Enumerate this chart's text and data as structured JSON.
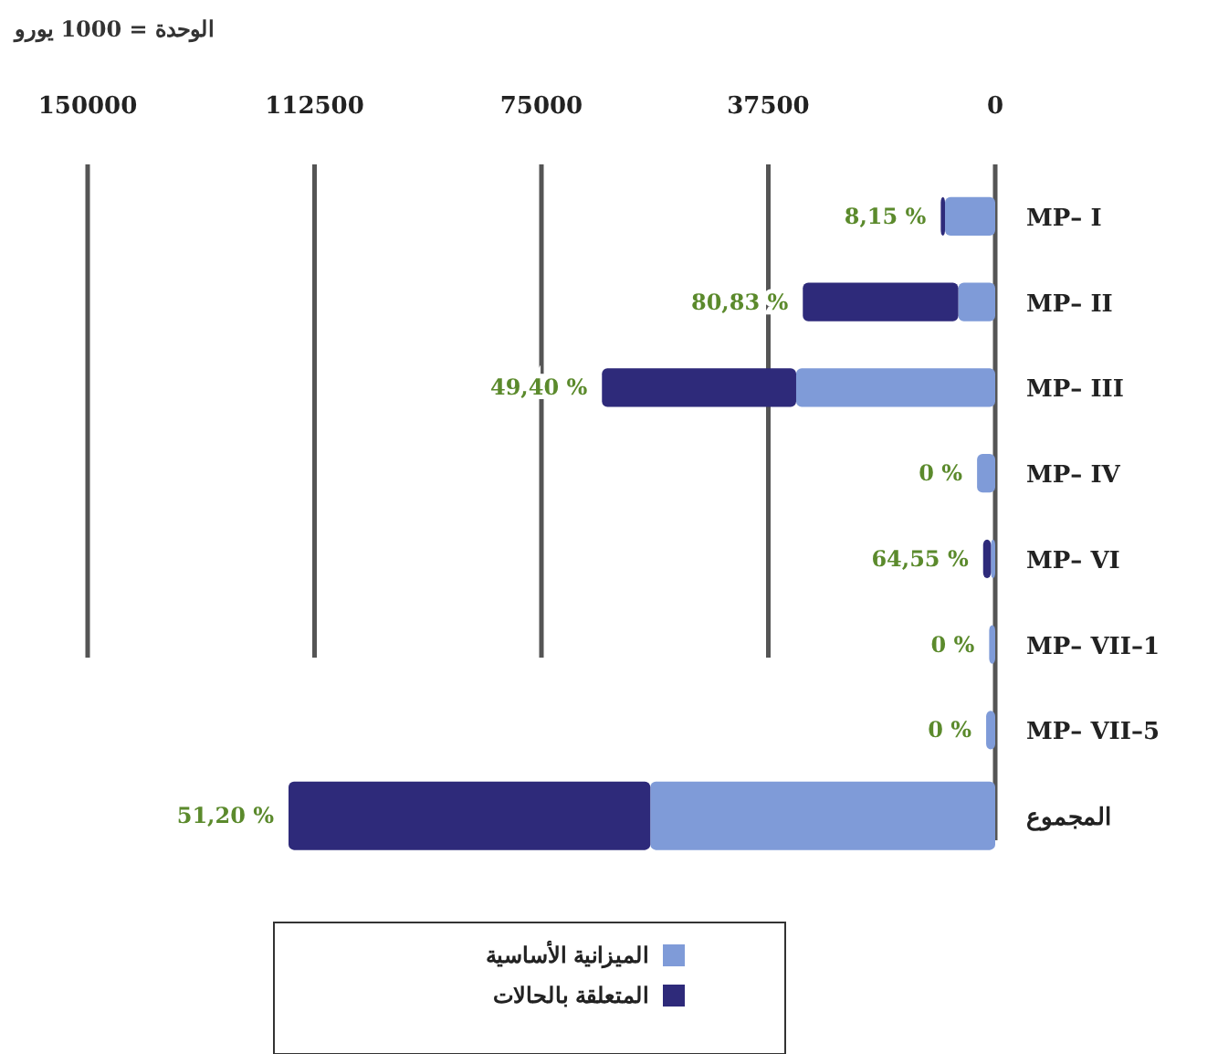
{
  "chart_data": {
    "type": "bar",
    "orientation": "horizontal",
    "stacked": true,
    "annotations": [
      "الوحدة = 1000 يورو",
      {
        "text": "8,15 %",
        "x": 9000,
        "y": "MP– I"
      },
      {
        "text": "80,83 %",
        "x": 31800,
        "y": "MP– II"
      },
      {
        "text": "49,40 %",
        "x": 65000,
        "y": "MP– III"
      },
      {
        "text": "0 %",
        "x": 3000,
        "y": "MP– IV"
      },
      {
        "text": "64,55 %",
        "x": 2000,
        "y": "MP– VI"
      },
      {
        "text": "0 %",
        "x": 1000,
        "y": "MP– VII–1"
      },
      {
        "text": "0 %",
        "x": 1500,
        "y": "MP– VII–5"
      },
      {
        "text": "51,20 %",
        "x": 116800,
        "y": "المجموع"
      }
    ],
    "categories": [
      "MP– I",
      "MP– II",
      "MP– III",
      "MP– IV",
      "MP– VI",
      "MP– VII–1",
      "MP– VII–5",
      "المجموع"
    ],
    "series": [
      {
        "name": "الميزانية الأساسية",
        "color": "#7f9bd8",
        "values": [
          8300,
          6100,
          32900,
          3000,
          700,
          1000,
          1500,
          57000
        ]
      },
      {
        "name": "المتعلقة بالحالات",
        "color": "#2e2a7a",
        "values": [
          700,
          25700,
          32100,
          0,
          1300,
          0,
          0,
          59800
        ]
      }
    ],
    "xlim": [
      150000,
      0
    ],
    "xticks": [
      150000,
      112500,
      75000,
      37500,
      0
    ],
    "grid": "x",
    "legend": "bottom"
  }
}
